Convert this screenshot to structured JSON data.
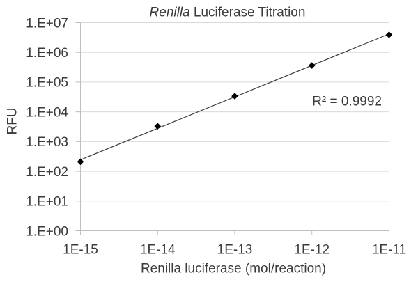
{
  "page": {
    "background": "#ffffff"
  },
  "chart_data": {
    "type": "scatter",
    "title": "Renilla Luciferase Titration",
    "title_italic": "Renilla",
    "title_rest": " Luciferase Titration",
    "xlabel": "Renilla luciferase (mol/reaction)",
    "ylabel": "RFU",
    "annotation": "R² = 0.9992",
    "x": [
      1e-15,
      1e-14,
      1e-13,
      1e-12,
      1e-11
    ],
    "y": [
      210,
      3300,
      33700,
      363000,
      3900000
    ],
    "x_scale": "log",
    "y_scale": "log",
    "xlim": [
      1e-15,
      1e-11
    ],
    "ylim": [
      1,
      10000000.0
    ],
    "x_tick_labels": [
      "1E-15",
      "1E-14",
      "1E-13",
      "1E-12",
      "1E-11"
    ],
    "y_tick_labels": [
      "1.E+00",
      "1.E+01",
      "1.E+02",
      "1.E+03",
      "1.E+04",
      "1.E+05",
      "1.E+06",
      "1.E+07"
    ],
    "trendline": "linear least-squares fit in log-log space",
    "grid": "horizontal major gridlines only",
    "legend": "none",
    "marker": "filled black diamond",
    "colors": {
      "marker": "#000000",
      "trendline": "#3f3f3f",
      "gridline": "#d9d9d9",
      "axis": "#bfbfbf",
      "text": "#3b3b3b",
      "background": "#ffffff"
    }
  }
}
